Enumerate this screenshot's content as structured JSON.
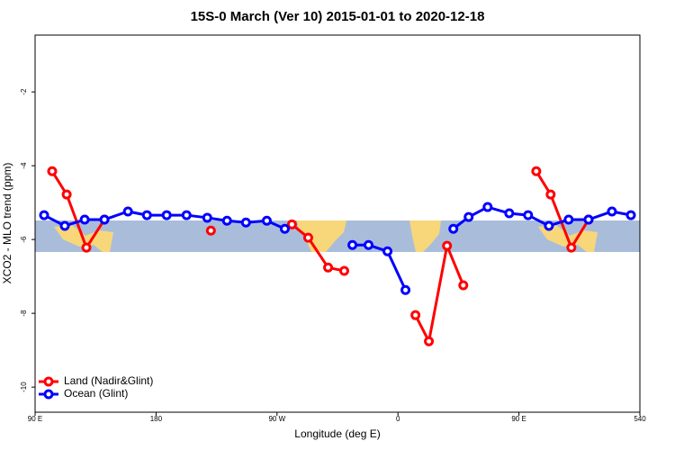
{
  "chart_data": {
    "type": "line",
    "title": "15S-0 March (Ver 10)   2015-01-01 to 2020-12-18",
    "x_label": "Longitude (deg E)",
    "y_label": "XCO2 - MLO trend (ppm)",
    "xlim": [
      90,
      540
    ],
    "ylim": [
      -10.68,
      -0.46
    ],
    "xticks": [
      {
        "value": 90,
        "label": "90 E"
      },
      180,
      {
        "value": 270,
        "label": "90 W"
      },
      {
        "value": 360,
        "label": "0"
      },
      {
        "value": 450,
        "label": "90 E"
      },
      540
    ],
    "yticks": [
      -2,
      -4,
      -6,
      -8,
      -10
    ],
    "legend": "bottom-left",
    "series": [
      {
        "name": "Land (Nadir&Glint)",
        "color": "#ff0000",
        "x": [
          102.7,
          113.5,
          128.2,
          141.6,
          null,
          220.8,
          null,
          281.1,
          293.2,
          308,
          320,
          null,
          373,
          383,
          396.5,
          408.6,
          null,
          462.9,
          473.6,
          489,
          501.8
        ],
        "values": [
          -4.15,
          -4.78,
          -6.22,
          -5.46,
          null,
          -5.76,
          null,
          -5.59,
          -5.95,
          -6.76,
          -6.85,
          null,
          -8.05,
          -8.76,
          -6.17,
          -7.24,
          null,
          -4.15,
          -4.78,
          -6.22,
          -5.46
        ]
      },
      {
        "name": "Ocean (Glint)",
        "color": "#0000ff",
        "x": [
          96.7,
          112.1,
          126.9,
          141.6,
          159.1,
          173.2,
          187.9,
          202.7,
          218.1,
          232.8,
          246.9,
          262.4,
          275.8,
          null,
          326.1,
          338.1,
          352.2,
          365.6,
          null,
          401.2,
          412.6,
          426.7,
          442.8,
          456.8,
          472.3,
          487,
          501.8,
          519.2,
          533.3
        ],
        "values": [
          -5.34,
          -5.63,
          -5.46,
          -5.46,
          -5.24,
          -5.34,
          -5.34,
          -5.34,
          -5.41,
          -5.49,
          -5.54,
          -5.49,
          -5.71,
          null,
          -6.15,
          -6.15,
          -6.32,
          -7.37,
          null,
          -5.71,
          -5.39,
          -5.12,
          -5.29,
          -5.34,
          -5.63,
          -5.46,
          -5.46,
          -5.24,
          -5.34
        ]
      }
    ]
  }
}
